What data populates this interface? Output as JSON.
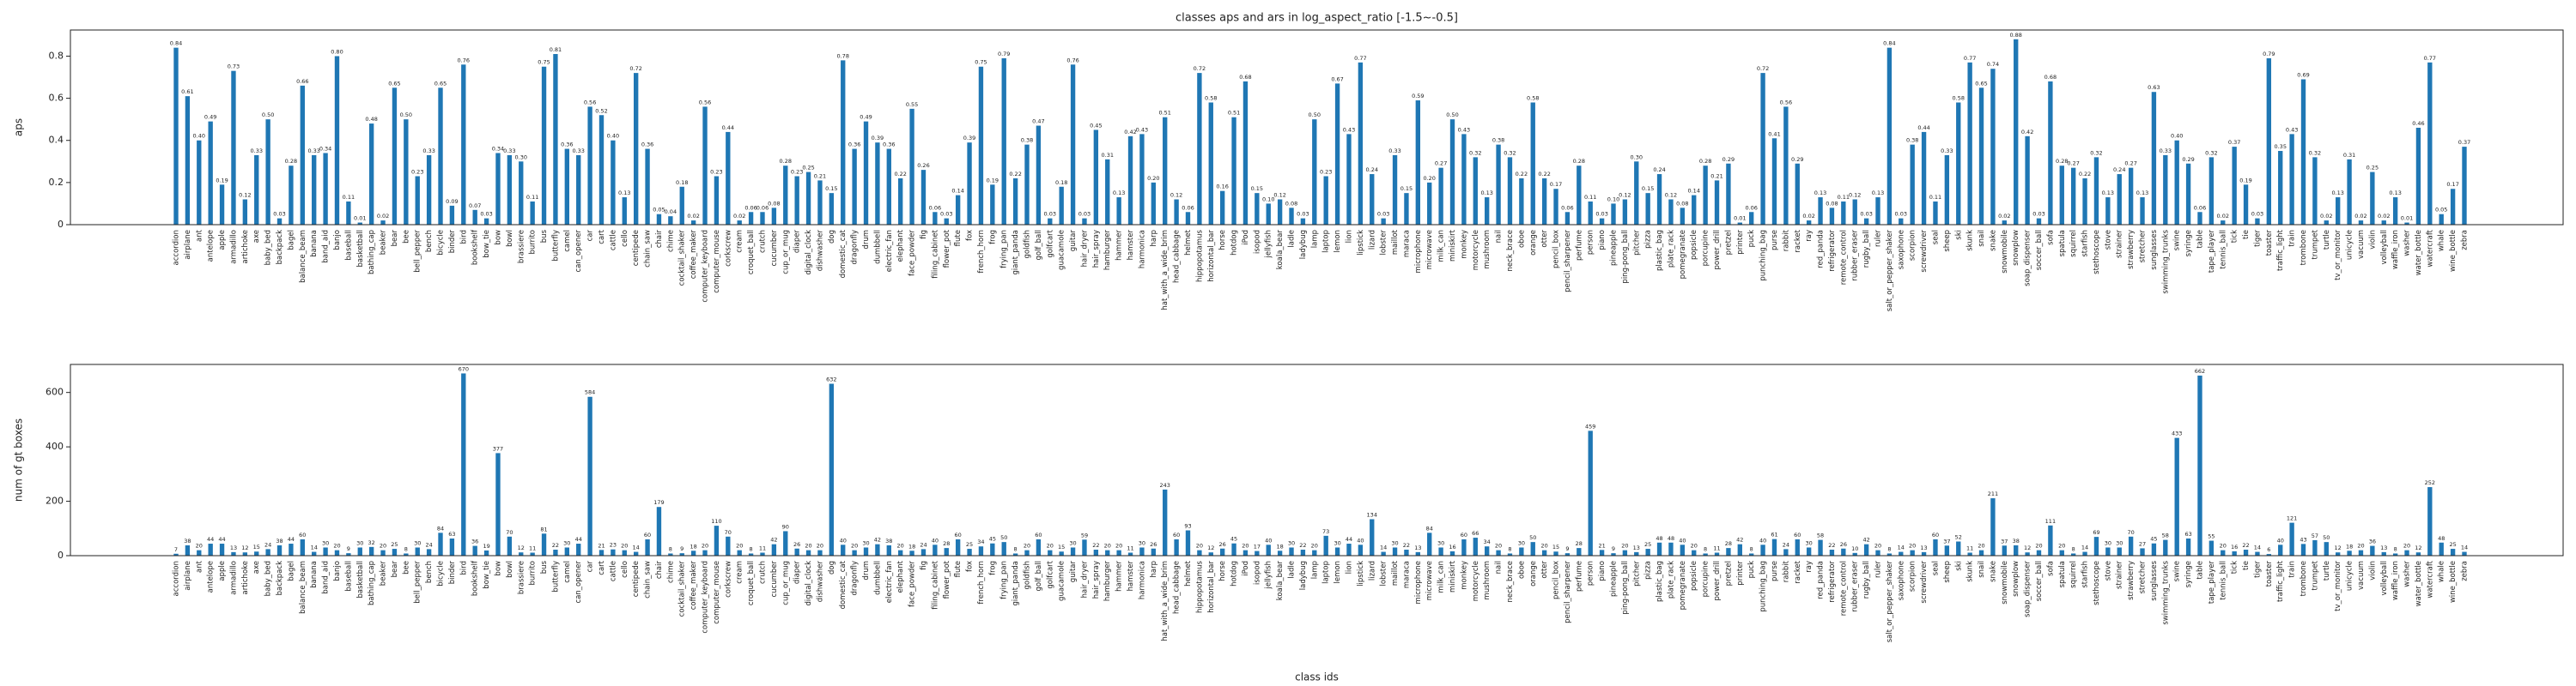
{
  "chart_data": [
    {
      "type": "bar",
      "title": "classes aps and ars in log_aspect_ratio [-1.5~-0.5]",
      "ylabel": "aps",
      "color": "#1f77b4",
      "categories": [
        "accordion",
        "airplane",
        "ant",
        "antelope",
        "apple",
        "armadillo",
        "artichoke",
        "axe",
        "baby_bed",
        "backpack",
        "bagel",
        "balance_beam",
        "banana",
        "band_aid",
        "banjo",
        "baseball",
        "basketball",
        "bathing_cap",
        "beaker",
        "bear",
        "bee",
        "bell_pepper",
        "bench",
        "bicycle",
        "binder",
        "bird",
        "bookshelf",
        "bow_tie",
        "bow",
        "bowl",
        "brassiere",
        "burrito",
        "bus",
        "butterfly",
        "camel",
        "can_opener",
        "car",
        "cart",
        "cattle",
        "cello",
        "centipede",
        "chain_saw",
        "chair",
        "chime",
        "cocktail_shaker",
        "coffee_maker",
        "computer_keyboard",
        "computer_mouse",
        "corkscrew",
        "cream",
        "croquet_ball",
        "crutch",
        "cucumber",
        "cup_or_mug",
        "diaper",
        "digital_clock",
        "dishwasher",
        "dog",
        "domestic_cat",
        "dragonfly",
        "drum",
        "dumbbell",
        "electric_fan",
        "elephant",
        "face_powder",
        "fig",
        "filing_cabinet",
        "flower_pot",
        "flute",
        "fox",
        "french_horn",
        "frog",
        "frying_pan",
        "giant_panda",
        "goldfish",
        "golf_ball",
        "golfcart",
        "guacamole",
        "guitar",
        "hair_dryer",
        "hair_spray",
        "hamburger",
        "hammer",
        "hamster",
        "harmonica",
        "harp",
        "hat_with_a_wide_brim",
        "head_cabbage",
        "helmet",
        "hippopotamus",
        "horizontal_bar",
        "horse",
        "hotdog",
        "iPod",
        "isopod",
        "jellyfish",
        "koala_bear",
        "ladle",
        "ladybug",
        "lamp",
        "laptop",
        "lemon",
        "lion",
        "lipstick",
        "lizard",
        "lobster",
        "maillot",
        "maraca",
        "microphone",
        "microwave",
        "milk_can",
        "miniskirt",
        "monkey",
        "motorcycle",
        "mushroom",
        "nail",
        "neck_brace",
        "oboe",
        "orange",
        "otter",
        "pencil_box",
        "pencil_sharpener",
        "perfume",
        "person",
        "piano",
        "pineapple",
        "ping-pong_ball",
        "pitcher",
        "pizza",
        "plastic_bag",
        "plate_rack",
        "pomegranate",
        "popsicle",
        "porcupine",
        "power_drill",
        "pretzel",
        "printer",
        "puck",
        "punching_bag",
        "purse",
        "rabbit",
        "racket",
        "ray",
        "red_panda",
        "refrigerator",
        "remote_control",
        "rubber_eraser",
        "rugby_ball",
        "ruler",
        "salt_or_pepper_shaker",
        "saxophone",
        "scorpion",
        "screwdriver",
        "seal",
        "sheep",
        "ski",
        "skunk",
        "snail",
        "snake",
        "snowmobile",
        "snowplow",
        "soap_dispenser",
        "soccer_ball",
        "sofa",
        "spatula",
        "squirrel",
        "starfish",
        "stethoscope",
        "stove",
        "strainer",
        "strawberry",
        "stretcher",
        "sunglasses",
        "swimming_trunks",
        "swine",
        "syringe",
        "table",
        "tape_player",
        "tennis_ball",
        "tick",
        "tie",
        "tiger",
        "toaster",
        "traffic_light",
        "train",
        "trombone",
        "trumpet",
        "turtle",
        "tv_or_monitor",
        "unicycle",
        "vacuum",
        "violin",
        "volleyball",
        "waffle_iron",
        "washer",
        "water_bottle",
        "watercraft",
        "whale",
        "wine_bottle",
        "zebra"
      ],
      "values": [
        0.84,
        0.61,
        0.4,
        0.49,
        0.19,
        0.73,
        0.12,
        0.33,
        0.5,
        0.03,
        0.28,
        0.66,
        0.33,
        0.34,
        0.8,
        0.11,
        0.01,
        0.48,
        0.02,
        0.65,
        0.5,
        0.23,
        0.33,
        0.65,
        0.09,
        0.76,
        0.07,
        0.03,
        0.34,
        0.33,
        0.3,
        0.11,
        0.75,
        0.81,
        0.36,
        0.33,
        0.56,
        0.52,
        0.4,
        0.13,
        0.72,
        0.36,
        0.05,
        0.04,
        0.18,
        0.02,
        0.56,
        0.23,
        0.44,
        0.02,
        0.06,
        0.06,
        0.08,
        0.28,
        0.23,
        0.25,
        0.21,
        0.15,
        0.78,
        0.36,
        0.49,
        0.39,
        0.36,
        0.22,
        0.55,
        0.26,
        0.06,
        0.03,
        0.14,
        0.39,
        0.75,
        0.19,
        0.79,
        0.22,
        0.38,
        0.47,
        0.03,
        0.18,
        0.76,
        0.03,
        0.45,
        0.31,
        0.13,
        0.42,
        0.43,
        0.2,
        0.51,
        0.12,
        0.06,
        0.72,
        0.58,
        0.16,
        0.51,
        0.68,
        0.15,
        0.1,
        0.12,
        0.08,
        0.03,
        0.5,
        0.23,
        0.67,
        0.43,
        0.77,
        0.24,
        0.03,
        0.33,
        0.15,
        0.59,
        0.2,
        0.27,
        0.5,
        0.43,
        0.32,
        0.13,
        0.38,
        0.32,
        0.22,
        0.58,
        0.22,
        0.17,
        0.06,
        0.28,
        0.11,
        0.03,
        0.1,
        0.12,
        0.3,
        0.15,
        0.24,
        0.12,
        0.08,
        0.14,
        0.28,
        0.21,
        0.29,
        0.01,
        0.06,
        0.72,
        0.41,
        0.56,
        0.29,
        0.02,
        0.13,
        0.08,
        0.11,
        0.12,
        0.03,
        0.13,
        0.84,
        0.03,
        0.38,
        0.44,
        0.11,
        0.33,
        0.58,
        0.77,
        0.65,
        0.74,
        0.02,
        0.88,
        0.42,
        0.03,
        0.68,
        0.28,
        0.27,
        0.22,
        0.32,
        0.13,
        0.24,
        0.27,
        0.13,
        0.63,
        0.33,
        0.4,
        0.29,
        0.06,
        0.32,
        0.02,
        0.37,
        0.19,
        0.03,
        0.79,
        0.35,
        0.43,
        0.69,
        0.32,
        0.02,
        0.13,
        0.31,
        0.02,
        0.25,
        0.02,
        0.13,
        0.01,
        0.46,
        0.77,
        0.05,
        0.17,
        0.37
      ],
      "value_labels": [
        "0.84",
        "0.61",
        "0.40",
        "0.49",
        "0.19",
        "0.73",
        "0.12",
        "0.33",
        "0.50",
        "0.03",
        "0.28",
        "0.66",
        "0.33",
        "0.34",
        "0.80",
        "0.11",
        "0.01",
        "0.48",
        "0.02",
        "0.65",
        "0.50",
        "0.23",
        "0.33",
        "0.65",
        "0.09",
        "0.76",
        "0.07",
        "0.03",
        "0.34",
        "0.33",
        "0.30",
        "0.11",
        "0.75",
        "0.81",
        "0.36",
        "0.33",
        "0.56",
        "0.52",
        "0.40",
        "0.13",
        "0.72",
        "0.36",
        "0.05",
        "0.04",
        "0.18",
        "0.02",
        "0.56",
        "0.23",
        "0.44",
        "0.02",
        "0.06",
        "0.06",
        "0.08",
        "0.28",
        "0.23",
        "0.25",
        "0.21",
        "0.15",
        "0.78",
        "0.36",
        "0.49",
        "0.39",
        "0.36",
        "0.22",
        "0.55",
        "0.26",
        "0.06",
        "0.03",
        "0.14",
        "0.39",
        "0.75",
        "0.19",
        "0.79",
        "0.22",
        "0.38",
        "0.47",
        "0.03",
        "0.18",
        "0.76",
        "0.03",
        "0.45",
        "0.31",
        "0.13",
        "0.42",
        "0.43",
        "0.20",
        "0.51",
        "0.12",
        "0.06",
        "0.72",
        "0.58",
        "0.16",
        "0.51",
        "0.68",
        "0.15",
        "0.10",
        "0.12",
        "0.08",
        "0.03",
        "0.50",
        "0.23",
        "0.67",
        "0.43",
        "0.77",
        "0.24",
        "0.03",
        "0.33",
        "0.15",
        "0.59",
        "0.20",
        "0.27",
        "0.50",
        "0.43",
        "0.32",
        "0.13",
        "0.38",
        "0.32",
        "0.22",
        "0.58",
        "0.22",
        "0.17",
        "0.06",
        "0.28",
        "0.11",
        "0.03",
        "0.10",
        "0.12",
        "0.30",
        "0.15",
        "0.24",
        "0.12",
        "0.08",
        "0.14",
        "0.28",
        "0.21",
        "0.29",
        "0.01",
        "0.06",
        "0.72",
        "0.41",
        "0.56",
        "0.29",
        "0.02",
        "0.13",
        "0.08",
        "0.11",
        "0.12",
        "0.03",
        "0.13",
        "0.84",
        "0.03",
        "0.38",
        "0.44",
        "0.11",
        "0.33",
        "0.58",
        "0.77",
        "0.65",
        "0.74",
        "0.02",
        "0.88",
        "0.42",
        "0.03",
        "0.68",
        "0.28",
        "0.27",
        "0.22",
        "0.32",
        "0.13",
        "0.24",
        "0.27",
        "0.13",
        "0.63",
        "0.33",
        "0.40",
        "0.29",
        "0.06",
        "0.32",
        "0.02",
        "0.37",
        "0.19",
        "0.03",
        "0.79",
        "0.35",
        "0.43",
        "0.69",
        "0.32",
        "0.02",
        "0.13",
        "0.31",
        "0.02",
        "0.25",
        "0.02",
        "0.13",
        "0.01",
        "0.46",
        "0.77",
        "0.05",
        "0.17",
        "0.37"
      ],
      "ylim": [
        0,
        0.924
      ],
      "yticks": [
        0,
        {
          "value": 0.2,
          "label": "0.2"
        },
        {
          "value": 0.4,
          "label": "0.4"
        },
        {
          "value": 0.6,
          "label": "0.6"
        },
        {
          "value": 0.8,
          "label": "0.8"
        }
      ]
    },
    {
      "type": "bar",
      "xlabel": "class ids",
      "ylabel": "num of gt boxes",
      "color": "#1f77b4",
      "categories": [
        "accordion",
        "airplane",
        "ant",
        "antelope",
        "apple",
        "armadillo",
        "artichoke",
        "axe",
        "baby_bed",
        "backpack",
        "bagel",
        "balance_beam",
        "banana",
        "band_aid",
        "banjo",
        "baseball",
        "basketball",
        "bathing_cap",
        "beaker",
        "bear",
        "bee",
        "bell_pepper",
        "bench",
        "bicycle",
        "binder",
        "bird",
        "bookshelf",
        "bow_tie",
        "bow",
        "bowl",
        "brassiere",
        "burrito",
        "bus",
        "butterfly",
        "camel",
        "can_opener",
        "car",
        "cart",
        "cattle",
        "cello",
        "centipede",
        "chain_saw",
        "chair",
        "chime",
        "cocktail_shaker",
        "coffee_maker",
        "computer_keyboard",
        "computer_mouse",
        "corkscrew",
        "cream",
        "croquet_ball",
        "crutch",
        "cucumber",
        "cup_or_mug",
        "diaper",
        "digital_clock",
        "dishwasher",
        "dog",
        "domestic_cat",
        "dragonfly",
        "drum",
        "dumbbell",
        "electric_fan",
        "elephant",
        "face_powder",
        "fig",
        "filing_cabinet",
        "flower_pot",
        "flute",
        "fox",
        "french_horn",
        "frog",
        "frying_pan",
        "giant_panda",
        "goldfish",
        "golf_ball",
        "golfcart",
        "guacamole",
        "guitar",
        "hair_dryer",
        "hair_spray",
        "hamburger",
        "hammer",
        "hamster",
        "harmonica",
        "harp",
        "hat_with_a_wide_brim",
        "head_cabbage",
        "helmet",
        "hippopotamus",
        "horizontal_bar",
        "horse",
        "hotdog",
        "iPod",
        "isopod",
        "jellyfish",
        "koala_bear",
        "ladle",
        "ladybug",
        "lamp",
        "laptop",
        "lemon",
        "lion",
        "lipstick",
        "lizard",
        "lobster",
        "maillot",
        "maraca",
        "microphone",
        "microwave",
        "milk_can",
        "miniskirt",
        "monkey",
        "motorcycle",
        "mushroom",
        "nail",
        "neck_brace",
        "oboe",
        "orange",
        "otter",
        "pencil_box",
        "pencil_sharpener",
        "perfume",
        "person",
        "piano",
        "pineapple",
        "ping-pong_ball",
        "pitcher",
        "pizza",
        "plastic_bag",
        "plate_rack",
        "pomegranate",
        "popsicle",
        "porcupine",
        "power_drill",
        "pretzel",
        "printer",
        "puck",
        "punching_bag",
        "purse",
        "rabbit",
        "racket",
        "ray",
        "red_panda",
        "refrigerator",
        "remote_control",
        "rubber_eraser",
        "rugby_ball",
        "ruler",
        "salt_or_pepper_shaker",
        "saxophone",
        "scorpion",
        "screwdriver",
        "seal",
        "sheep",
        "ski",
        "skunk",
        "snail",
        "snake",
        "snowmobile",
        "snowplow",
        "soap_dispenser",
        "soccer_ball",
        "sofa",
        "spatula",
        "squirrel",
        "starfish",
        "stethoscope",
        "stove",
        "strainer",
        "strawberry",
        "stretcher",
        "sunglasses",
        "swimming_trunks",
        "swine",
        "syringe",
        "table",
        "tape_player",
        "tennis_ball",
        "tick",
        "tie",
        "tiger",
        "toaster",
        "traffic_light",
        "train",
        "trombone",
        "trumpet",
        "turtle",
        "tv_or_monitor",
        "unicycle",
        "vacuum",
        "violin",
        "volleyball",
        "waffle_iron",
        "washer",
        "water_bottle",
        "watercraft",
        "whale",
        "wine_bottle",
        "zebra"
      ],
      "values": [
        7,
        38,
        20,
        44,
        44,
        13,
        12,
        15,
        24,
        38,
        44,
        60,
        14,
        30,
        20,
        9,
        30,
        32,
        20,
        25,
        8,
        30,
        24,
        84,
        63,
        670,
        36,
        19,
        377,
        70,
        12,
        11,
        81,
        22,
        30,
        44,
        584,
        21,
        23,
        20,
        14,
        60,
        179,
        8,
        9,
        18,
        20,
        110,
        70,
        20,
        8,
        11,
        42,
        90,
        26,
        20,
        20,
        632,
        40,
        20,
        30,
        42,
        38,
        20,
        18,
        24,
        40,
        28,
        60,
        25,
        34,
        45,
        50,
        8,
        20,
        60,
        20,
        15,
        30,
        59,
        22,
        20,
        20,
        11,
        30,
        26,
        243,
        60,
        93,
        20,
        12,
        26,
        45,
        20,
        17,
        40,
        18,
        30,
        22,
        20,
        73,
        30,
        44,
        40,
        134,
        14,
        30,
        22,
        13,
        84,
        30,
        16,
        60,
        66,
        34,
        20,
        8,
        30,
        50,
        20,
        15,
        9,
        28,
        459,
        21,
        9,
        20,
        13,
        25,
        48,
        48,
        40,
        20,
        8,
        11,
        28,
        42,
        8,
        40,
        61,
        24,
        60,
        30,
        58,
        22,
        26,
        10,
        42,
        20,
        8,
        14,
        20,
        13,
        60,
        37,
        52,
        11,
        20,
        211,
        37,
        38,
        12,
        20,
        111,
        20,
        8,
        14,
        69,
        30,
        30,
        70,
        27,
        45,
        58,
        433,
        63,
        662,
        55,
        20,
        16,
        22,
        14,
        6,
        40,
        121,
        43,
        57,
        50,
        12,
        18,
        20,
        36,
        13,
        8,
        20,
        12,
        252,
        48,
        25,
        14
      ],
      "ylim": [
        0,
        703
      ],
      "yticks": [
        0,
        200,
        400,
        600
      ]
    }
  ]
}
